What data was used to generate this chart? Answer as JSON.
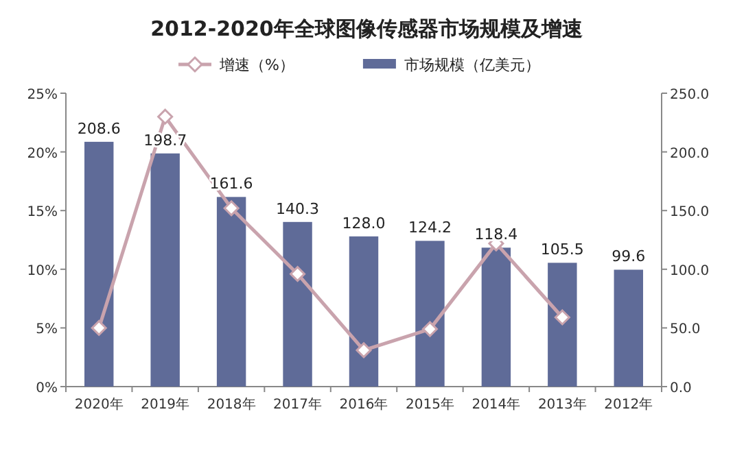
{
  "chart_data": {
    "type": "bar",
    "title": "2012-2020年全球图像传感器市场规模及增速",
    "categories": [
      "2020年",
      "2019年",
      "2018年",
      "2017年",
      "2016年",
      "2015年",
      "2014年",
      "2013年",
      "2012年"
    ],
    "series": [
      {
        "name": "增速（%）",
        "type": "line",
        "axis": "y",
        "color": "#c9a3ad",
        "values": [
          5.0,
          23.0,
          15.2,
          9.6,
          3.1,
          4.9,
          12.2,
          5.9,
          null
        ]
      },
      {
        "name": "市场规模（亿美元）",
        "axis": "y2",
        "color": "#5f6b98",
        "values": [
          208.6,
          198.7,
          161.6,
          140.3,
          128.0,
          124.2,
          118.4,
          105.5,
          99.6
        ],
        "value_labels": [
          "208.6",
          "198.7",
          "161.6",
          "140.3",
          "128.0",
          "124.2",
          "118.4",
          "105.5",
          "99.6"
        ]
      }
    ],
    "ylim": [
      0,
      25
    ],
    "yticks": [
      {
        "value": 0,
        "label": "0%"
      },
      {
        "value": 5,
        "label": "5%"
      },
      {
        "value": 10,
        "label": "10%"
      },
      {
        "value": 15,
        "label": "15%"
      },
      {
        "value": 20,
        "label": "20%"
      },
      {
        "value": 25,
        "label": "25%"
      }
    ],
    "y2lim": [
      0,
      250
    ],
    "y2ticks": [
      {
        "value": 0,
        "label": "0.0"
      },
      {
        "value": 50,
        "label": "50.0"
      },
      {
        "value": 100,
        "label": "100.0"
      },
      {
        "value": 150,
        "label": "150.0"
      },
      {
        "value": 200,
        "label": "200.0"
      },
      {
        "value": 250,
        "label": "250.0"
      }
    ],
    "legend": "top",
    "marker": "diamond",
    "grid": false
  }
}
